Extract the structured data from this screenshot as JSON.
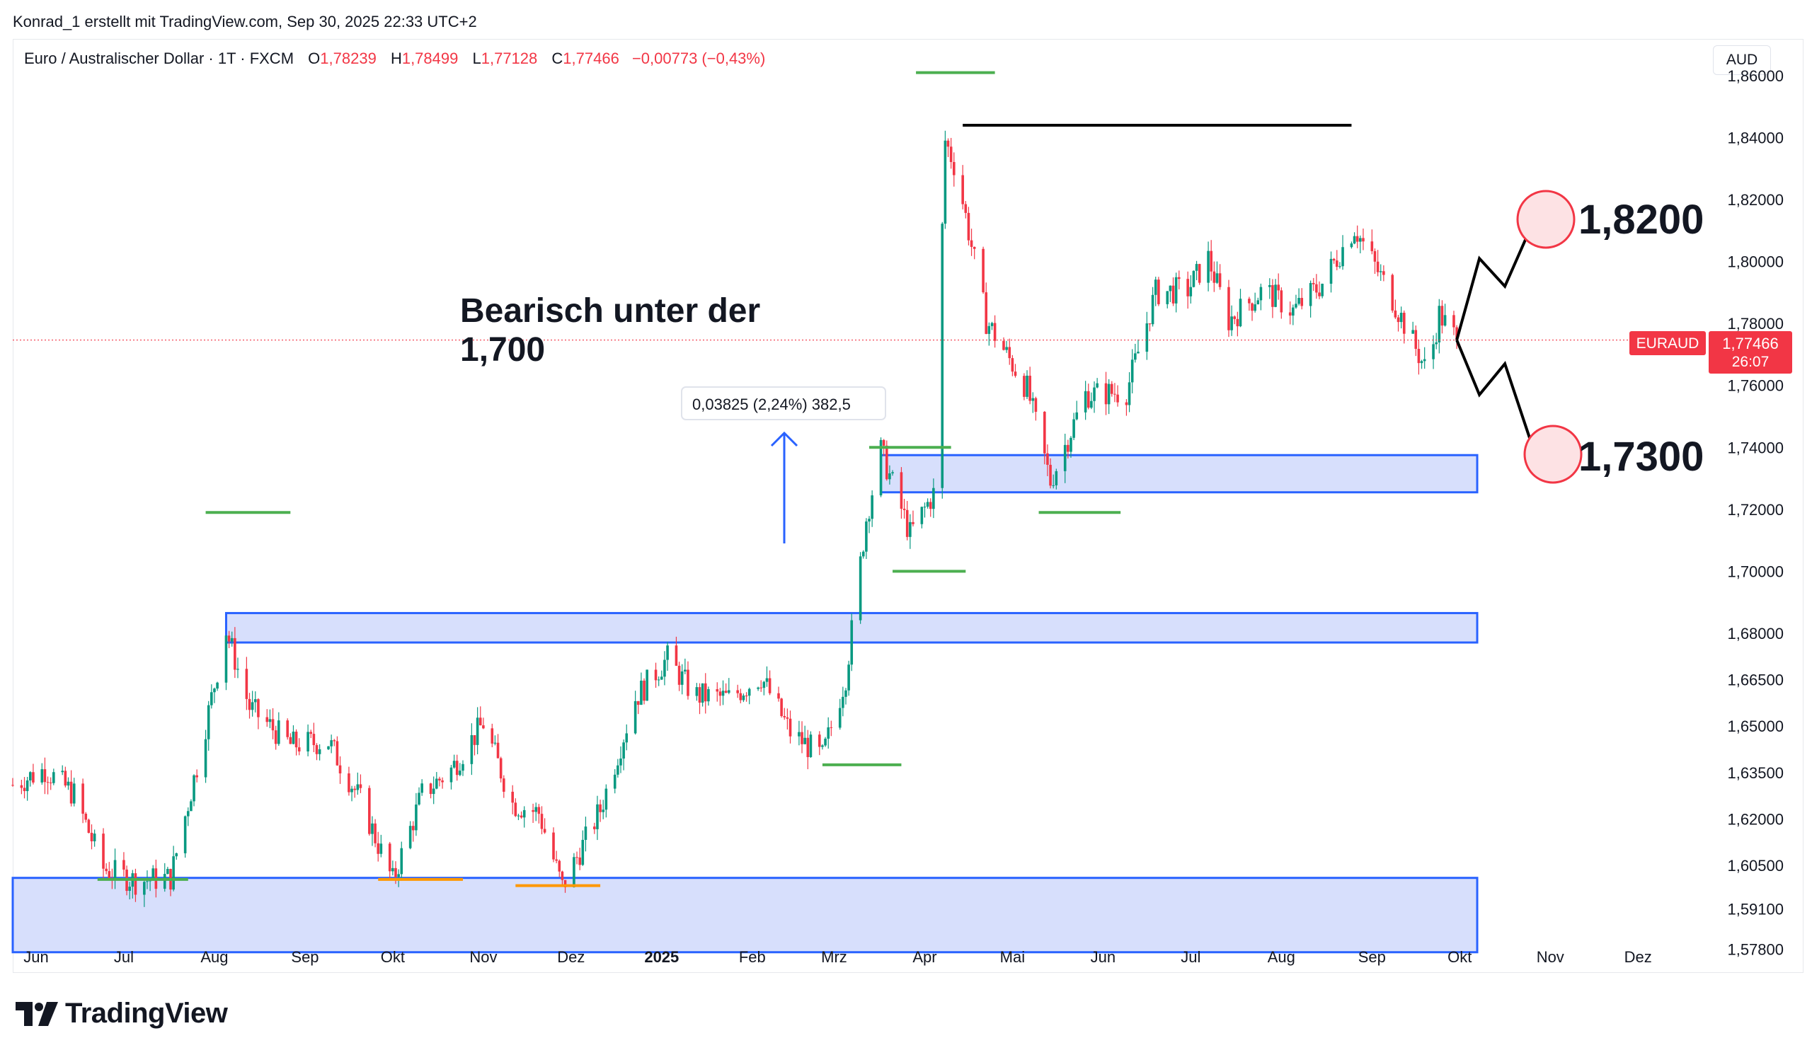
{
  "header": {
    "attribution": "Konrad_1 erstellt mit TradingView.com, Sep 30, 2025 22:33 UTC+2"
  },
  "legend": {
    "symbol": "Euro / Australischer Dollar · 1T · FXCM",
    "open_label": "O",
    "open": "1,78239",
    "high_label": "H",
    "high": "1,78499",
    "low_label": "L",
    "low": "1,77128",
    "close_label": "C",
    "close": "1,77466",
    "change": "−0,00773 (−0,43%)"
  },
  "currency_button": "AUD",
  "annotations": {
    "headline_line1": "Bearisch unter der",
    "headline_line2": "1,700",
    "measure_label": "0,03825 (2,24%) 382,5",
    "target_up": "1,8200",
    "target_down": "1,7300"
  },
  "price_badge": {
    "symbol": "EURAUD",
    "price": "1,77466",
    "countdown": "26:07"
  },
  "brand": {
    "name": "TradingView"
  },
  "colors": {
    "up": "#089981",
    "down": "#f23645",
    "zone_fill": "#d3dcfc",
    "zone_border": "#2962ff",
    "support_green": "#4caf50",
    "support_orange": "#ff9800",
    "badge_bg": "#f23645"
  },
  "chart_data": {
    "type": "candlestick",
    "title": "Euro / Australischer Dollar · 1T · FXCM",
    "ylabel": "AUD",
    "ylim": [
      1.571,
      1.868
    ],
    "y_ticks": [
      "1,86000",
      "1,84000",
      "1,82000",
      "1,80000",
      "1,78000",
      "1,76000",
      "1,74000",
      "1,72000",
      "1,70000",
      "1,68000",
      "1,66500",
      "1,65000",
      "1,63500",
      "1,62000",
      "1,60500",
      "1,59100",
      "1,57800"
    ],
    "x_ticks": [
      "Jun",
      "Jul",
      "Aug",
      "Sep",
      "Okt",
      "Nov",
      "Dez",
      "2025",
      "Feb",
      "Mrz",
      "Apr",
      "Mai",
      "Jun",
      "Jul",
      "Aug",
      "Sep",
      "Okt",
      "Nov",
      "Dez"
    ],
    "date_range": [
      "2024-05-24",
      "2025-09-30"
    ],
    "close_path": [
      {
        "date": "2024-05-24",
        "close": 1.631
      },
      {
        "date": "2024-06-04",
        "close": 1.636
      },
      {
        "date": "2024-06-14",
        "close": 1.628
      },
      {
        "date": "2024-06-24",
        "close": 1.604
      },
      {
        "date": "2024-07-05",
        "close": 1.6
      },
      {
        "date": "2024-07-17",
        "close": 1.601
      },
      {
        "date": "2024-07-26",
        "close": 1.637
      },
      {
        "date": "2024-08-05",
        "close": 1.681
      },
      {
        "date": "2024-08-13",
        "close": 1.656
      },
      {
        "date": "2024-08-27",
        "close": 1.644
      },
      {
        "date": "2024-09-09",
        "close": 1.645
      },
      {
        "date": "2024-09-20",
        "close": 1.626
      },
      {
        "date": "2024-10-01",
        "close": 1.6
      },
      {
        "date": "2024-10-11",
        "close": 1.628
      },
      {
        "date": "2024-10-21",
        "close": 1.636
      },
      {
        "date": "2024-11-01",
        "close": 1.651
      },
      {
        "date": "2024-11-11",
        "close": 1.625
      },
      {
        "date": "2024-11-20",
        "close": 1.622
      },
      {
        "date": "2024-11-28",
        "close": 1.598
      },
      {
        "date": "2024-12-11",
        "close": 1.623
      },
      {
        "date": "2024-12-23",
        "close": 1.659
      },
      {
        "date": "2025-01-03",
        "close": 1.672
      },
      {
        "date": "2025-01-12",
        "close": 1.66
      },
      {
        "date": "2025-01-24",
        "close": 1.659
      },
      {
        "date": "2025-02-04",
        "close": 1.666
      },
      {
        "date": "2025-02-14",
        "close": 1.648
      },
      {
        "date": "2025-02-25",
        "close": 1.64
      },
      {
        "date": "2025-03-05",
        "close": 1.666
      },
      {
        "date": "2025-03-12",
        "close": 1.717
      },
      {
        "date": "2025-03-17",
        "close": 1.739
      },
      {
        "date": "2025-03-27",
        "close": 1.712
      },
      {
        "date": "2025-04-04",
        "close": 1.725
      },
      {
        "date": "2025-04-08",
        "close": 1.839
      },
      {
        "date": "2025-04-12",
        "close": 1.829
      },
      {
        "date": "2025-04-22",
        "close": 1.781
      },
      {
        "date": "2025-05-06",
        "close": 1.759
      },
      {
        "date": "2025-05-14",
        "close": 1.729
      },
      {
        "date": "2025-05-26",
        "close": 1.757
      },
      {
        "date": "2025-06-09",
        "close": 1.758
      },
      {
        "date": "2025-06-19",
        "close": 1.79
      },
      {
        "date": "2025-06-30",
        "close": 1.791
      },
      {
        "date": "2025-07-07",
        "close": 1.801
      },
      {
        "date": "2025-07-14",
        "close": 1.781
      },
      {
        "date": "2025-07-26",
        "close": 1.791
      },
      {
        "date": "2025-08-05",
        "close": 1.784
      },
      {
        "date": "2025-08-15",
        "close": 1.793
      },
      {
        "date": "2025-08-26",
        "close": 1.811
      },
      {
        "date": "2025-09-08",
        "close": 1.788
      },
      {
        "date": "2025-09-20",
        "close": 1.764
      },
      {
        "date": "2025-09-24",
        "close": 1.783
      },
      {
        "date": "2025-09-30",
        "close": 1.77466
      }
    ],
    "zones": [
      {
        "from": 1.7255,
        "to": 1.7375,
        "x_start": "2025-03-17",
        "x_end": "2025-10-07"
      },
      {
        "from": 1.677,
        "to": 1.6865,
        "x_start": "2024-08-05",
        "x_end": "2025-10-07"
      },
      {
        "from": 1.577,
        "to": 1.601,
        "x_start": "2024-05-24",
        "x_end": "2025-10-07"
      }
    ],
    "horizontal_markers": [
      {
        "color": "green",
        "value": 1.719,
        "x_start": "2024-07-29",
        "x_end": "2024-08-27"
      },
      {
        "color": "green",
        "value": 1.861,
        "x_start": "2025-03-29",
        "x_end": "2025-04-25"
      },
      {
        "color": "green",
        "value": 1.74,
        "x_start": "2025-03-13",
        "x_end": "2025-04-10"
      },
      {
        "color": "green",
        "value": 1.7,
        "x_start": "2025-03-21",
        "x_end": "2025-04-15"
      },
      {
        "color": "green",
        "value": 1.6375,
        "x_start": "2025-02-25",
        "x_end": "2025-03-24"
      },
      {
        "color": "green",
        "value": 1.719,
        "x_start": "2025-05-10",
        "x_end": "2025-06-07"
      },
      {
        "color": "green",
        "value": 1.6005,
        "x_start": "2024-06-22",
        "x_end": "2024-07-23"
      },
      {
        "color": "orange",
        "value": 1.6005,
        "x_start": "2024-09-26",
        "x_end": "2024-10-25"
      },
      {
        "color": "orange",
        "value": 1.5985,
        "x_start": "2024-11-12",
        "x_end": "2024-12-11"
      },
      {
        "color": "black",
        "value": 1.844,
        "x_start": "2025-04-14",
        "x_end": "2025-08-25"
      }
    ],
    "projection": {
      "up": [
        1.77466,
        1.801,
        1.792,
        1.82
      ],
      "down": [
        1.77466,
        1.757,
        1.767,
        1.73
      ]
    }
  }
}
